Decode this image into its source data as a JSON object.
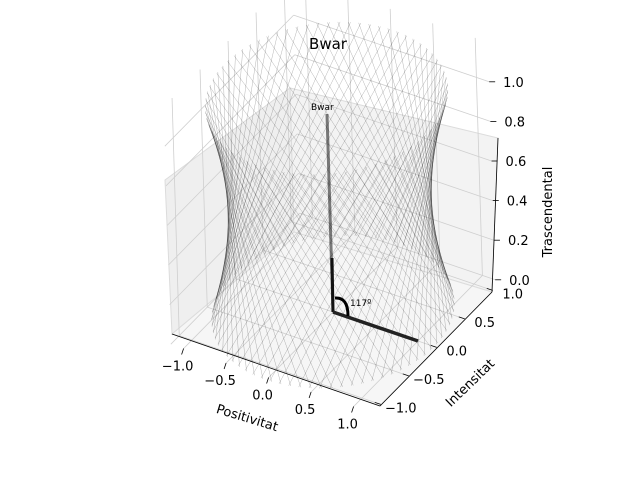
{
  "chart_data": {
    "type": "3d-line",
    "title": "Bwar",
    "xlabel": "Positivitat",
    "ylabel": "Intensitat",
    "zlabel": "Trascendental",
    "xlim": [
      -1.0,
      1.0
    ],
    "ylim": [
      -1.0,
      1.0
    ],
    "zlim": [
      0.0,
      1.0
    ],
    "xticks": [
      "−1.0",
      "−0.5",
      "0.0",
      "0.5",
      "1.0"
    ],
    "yticks": [
      "−1.0",
      "−0.5",
      "0.0",
      "0.5",
      "1.0"
    ],
    "zticks": [
      "0.0",
      "0.2",
      "0.4",
      "0.6",
      "0.8",
      "1.0"
    ],
    "grid": true,
    "surface": {
      "kind": "hyperboloid wireframe",
      "color": "#000000"
    },
    "vectors": [
      {
        "from": [
          0,
          0,
          0
        ],
        "to": [
          0,
          0,
          1
        ],
        "label": "Bwar"
      },
      {
        "from": [
          0,
          0,
          0
        ],
        "to": [
          1,
          0,
          0
        ],
        "label": ""
      }
    ],
    "angle_label": "117º"
  }
}
